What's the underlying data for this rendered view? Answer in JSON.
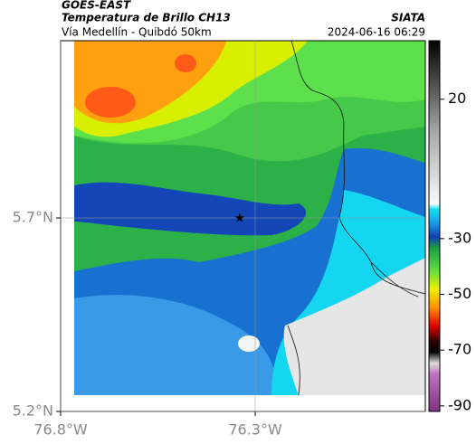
{
  "chart_data": {
    "type": "map",
    "source": "GOES-EAST",
    "title": "Temperatura de Brillo CH13",
    "organization": "SIATA",
    "subtitle": "Vía Medellín - Quibdó 50km",
    "datetime": "2024-06-16 06:29",
    "xlim": [
      -76.8,
      -75.863
    ],
    "ylim": [
      5.2,
      6.158
    ],
    "xticks": [
      {
        "value": -76.8,
        "label": "76.8°W"
      },
      {
        "value": -76.3,
        "label": "76.3°W"
      }
    ],
    "yticks": [
      {
        "value": 5.2,
        "label": "5.2°N"
      },
      {
        "value": 5.7,
        "label": "5.7°N"
      }
    ],
    "grid": true,
    "marker": {
      "x": -76.34,
      "y": 5.7
    },
    "colorbar": {
      "clim": [
        -92,
        41
      ],
      "ticks": [
        20,
        -30,
        -50,
        -70,
        -90
      ]
    }
  }
}
